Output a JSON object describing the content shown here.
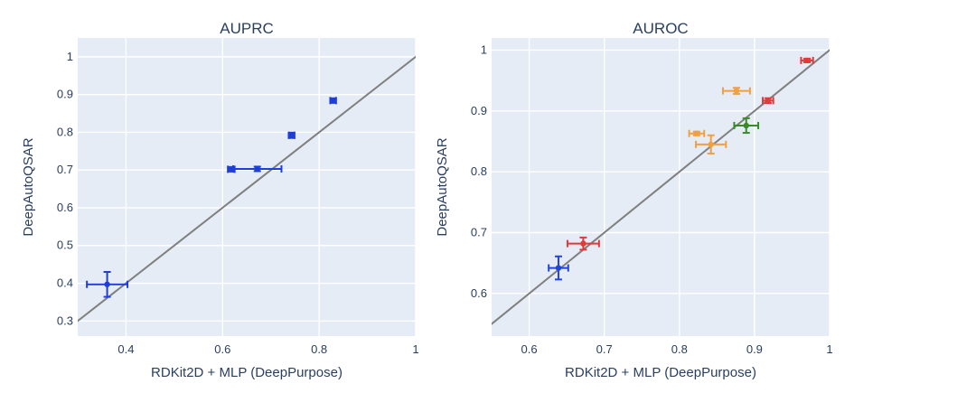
{
  "chart_data": [
    {
      "type": "scatter",
      "title": "AUPRC",
      "xlabel": "RDKit2D + MLP (DeepPurpose)",
      "ylabel": "DeepAutoQSAR",
      "xlim": [
        0.3,
        1.0
      ],
      "ylim": [
        0.26,
        1.05
      ],
      "xticks": [
        0.4,
        0.6,
        0.8,
        1.0
      ],
      "xtick_labels": [
        "0.4",
        "0.6",
        "0.8",
        "1"
      ],
      "yticks": [
        0.3,
        0.4,
        0.5,
        0.6,
        0.7,
        0.8,
        0.9,
        1.0
      ],
      "ytick_labels": [
        "0.3",
        "0.4",
        "0.5",
        "0.6",
        "0.7",
        "0.8",
        "0.9",
        "1"
      ],
      "grid": true,
      "reference_line": "y = x",
      "points": [
        {
          "x": 0.361,
          "y": 0.397,
          "x_err": 0.042,
          "y_err": 0.033,
          "color": "#1f3dd9"
        },
        {
          "x": 0.618,
          "y": 0.702,
          "x_err": 0.007,
          "y_err": 0.006,
          "color": "#1f3dd9"
        },
        {
          "x": 0.672,
          "y": 0.703,
          "x_err": 0.05,
          "y_err": 0.006,
          "color": "#1f3dd9"
        },
        {
          "x": 0.743,
          "y": 0.792,
          "x_err": 0.006,
          "y_err": 0.007,
          "color": "#1f3dd9"
        },
        {
          "x": 0.829,
          "y": 0.884,
          "x_err": 0.006,
          "y_err": 0.006,
          "color": "#1f3dd9"
        }
      ]
    },
    {
      "type": "scatter",
      "title": "AUROC",
      "xlabel": "RDKit2D + MLP (DeepPurpose)",
      "ylabel": "DeepAutoQSAR",
      "xlim": [
        0.55,
        1.0
      ],
      "ylim": [
        0.53,
        1.02
      ],
      "xticks": [
        0.6,
        0.7,
        0.8,
        0.9,
        1.0
      ],
      "xtick_labels": [
        "0.6",
        "0.7",
        "0.8",
        "0.9",
        "1"
      ],
      "yticks": [
        0.6,
        0.7,
        0.8,
        0.9,
        1.0
      ],
      "ytick_labels": [
        "0.6",
        "0.7",
        "0.8",
        "0.9",
        "1"
      ],
      "grid": true,
      "reference_line": "y = x",
      "points": [
        {
          "x": 0.639,
          "y": 0.642,
          "x_err": 0.013,
          "y_err": 0.019,
          "color": "#2244dd"
        },
        {
          "x": 0.672,
          "y": 0.682,
          "x_err": 0.021,
          "y_err": 0.01,
          "color": "#e03a3a"
        },
        {
          "x": 0.823,
          "y": 0.863,
          "x_err": 0.01,
          "y_err": 0.003,
          "color": "#f0a040"
        },
        {
          "x": 0.842,
          "y": 0.845,
          "x_err": 0.02,
          "y_err": 0.015,
          "color": "#f0a040"
        },
        {
          "x": 0.876,
          "y": 0.933,
          "x_err": 0.018,
          "y_err": 0.005,
          "color": "#f0a040"
        },
        {
          "x": 0.889,
          "y": 0.876,
          "x_err": 0.016,
          "y_err": 0.012,
          "color": "#3a8a2a"
        },
        {
          "x": 0.918,
          "y": 0.917,
          "x_err": 0.007,
          "y_err": 0.004,
          "color": "#e03a3a"
        },
        {
          "x": 0.97,
          "y": 0.983,
          "x_err": 0.008,
          "y_err": 0.003,
          "color": "#e03a3a"
        }
      ]
    }
  ],
  "colors": {
    "plot_background": "#e5ecf6",
    "grid": "#ffffff",
    "reference_line": "#7f7f7f",
    "text": "#2a3f5f"
  }
}
